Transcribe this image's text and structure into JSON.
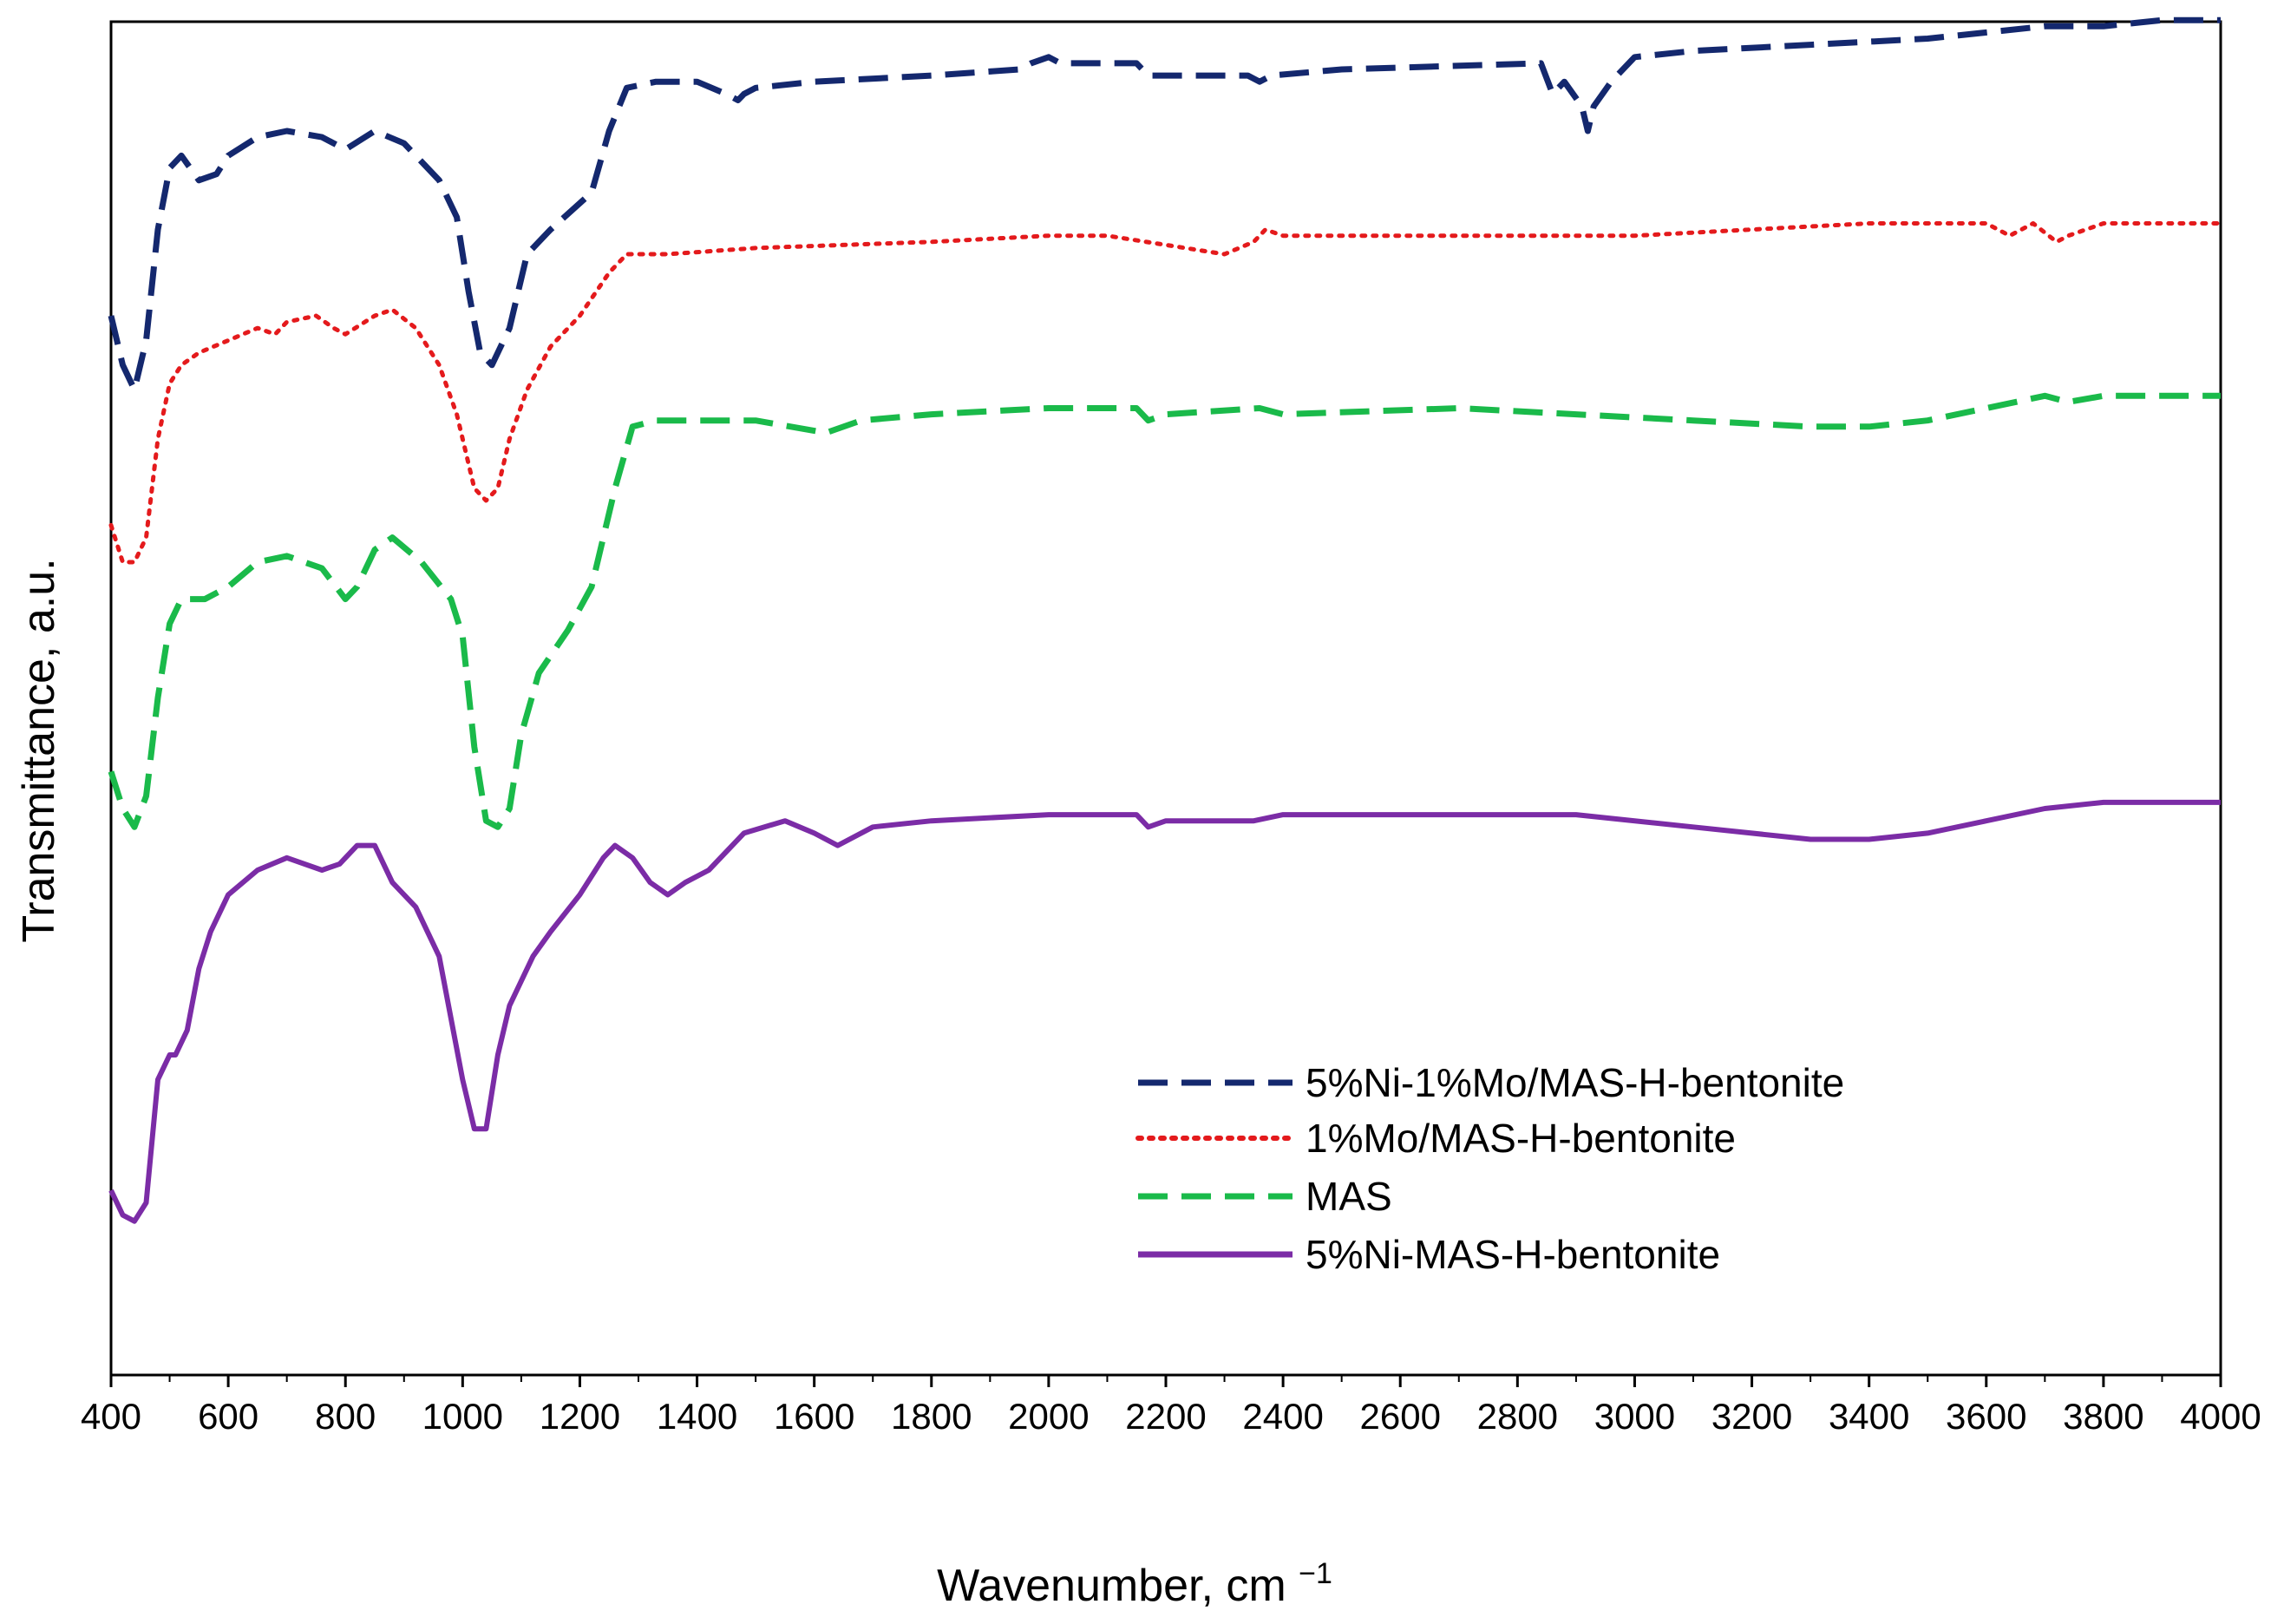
{
  "chart_data": {
    "type": "line",
    "title": "",
    "xlabel": "Wavenumber, cm ",
    "xlabel_superscript": "−1",
    "ylabel": "Transmittance, a.u.",
    "xlim": [
      400,
      4000
    ],
    "ylim": [
      0,
      100
    ],
    "x_ticks": [
      400,
      600,
      800,
      1000,
      1200,
      1400,
      1600,
      1800,
      2000,
      2200,
      2400,
      2600,
      2800,
      3000,
      3200,
      3400,
      3600,
      3800,
      4000
    ],
    "x_tick_labels": [
      "400",
      "600",
      "800",
      "1000",
      "1200",
      "1400",
      "1600",
      "1800",
      "2000",
      "2200",
      "2400",
      "2600",
      "2800",
      "3000",
      "3200",
      "3400",
      "3600",
      "3800",
      "4000"
    ],
    "y_ticks_visible": false,
    "grid": false,
    "legend_position": "lower-right",
    "series": [
      {
        "name": "5%Ni-1%Mo/MAS-H-bentonite",
        "color": "#14286e",
        "style": "dashed",
        "x": [
          400,
          420,
          440,
          460,
          480,
          500,
          520,
          550,
          580,
          600,
          650,
          700,
          760,
          800,
          850,
          900,
          960,
          990,
          1010,
          1030,
          1050,
          1080,
          1110,
          1150,
          1220,
          1250,
          1280,
          1330,
          1400,
          1450,
          1470,
          1480,
          1500,
          1600,
          1800,
          1950,
          1970,
          2000,
          2020,
          2150,
          2170,
          2300,
          2340,
          2360,
          2380,
          2500,
          2840,
          2860,
          2880,
          2910,
          2920,
          2930,
          2960,
          3000,
          3100,
          3300,
          3500,
          3600,
          3700,
          3800,
          3900,
          4000
        ],
        "values": [
          80,
          76,
          74,
          78,
          87,
          92,
          93,
          91,
          91.5,
          93,
          94.5,
          95,
          94.5,
          93.5,
          95,
          94,
          91,
          88,
          82,
          77,
          76,
          79,
          85,
          87,
          90,
          95,
          98.5,
          99,
          99,
          98,
          97.5,
          98,
          98.5,
          99,
          99.5,
          100,
          100.5,
          101,
          100.5,
          100.5,
          99.5,
          99.5,
          99.5,
          99,
          99.5,
          100,
          100.5,
          98,
          99,
          97,
          95,
          97,
          99,
          101,
          101.5,
          102,
          102.5,
          103,
          103.5,
          103.5,
          104,
          104
        ]
      },
      {
        "name": "1%Mo/MAS-H-bentonite",
        "color": "#e41a1c",
        "style": "dotted",
        "x": [
          400,
          420,
          440,
          460,
          480,
          500,
          520,
          550,
          600,
          650,
          680,
          700,
          750,
          780,
          800,
          850,
          880,
          920,
          960,
          990,
          1020,
          1040,
          1060,
          1080,
          1110,
          1150,
          1200,
          1250,
          1280,
          1350,
          1500,
          1800,
          2000,
          2100,
          2300,
          2350,
          2370,
          2400,
          2600,
          2800,
          3000,
          3200,
          3400,
          3600,
          3640,
          3680,
          3720,
          3740,
          3800,
          3900,
          4000
        ],
        "values": [
          63,
          60,
          60,
          62,
          70,
          74.5,
          76,
          77,
          78,
          79,
          78.5,
          79.5,
          80,
          79,
          78.5,
          80,
          80.5,
          79,
          76,
          72,
          66,
          65,
          66,
          70,
          74,
          77.5,
          80,
          83.5,
          85,
          85,
          85.5,
          86,
          86.5,
          86.5,
          85,
          86,
          87,
          86.5,
          86.5,
          86.5,
          86.5,
          87,
          87.5,
          87.5,
          86.5,
          87.5,
          86,
          86.5,
          87.5,
          87.5,
          87.5
        ]
      },
      {
        "name": "MAS",
        "color": "#1aba4a",
        "style": "dashed",
        "x": [
          400,
          420,
          440,
          460,
          480,
          500,
          520,
          560,
          600,
          650,
          700,
          760,
          800,
          820,
          850,
          880,
          930,
          980,
          1000,
          1020,
          1040,
          1060,
          1080,
          1100,
          1130,
          1180,
          1220,
          1260,
          1290,
          1330,
          1500,
          1560,
          1620,
          1680,
          1800,
          2000,
          2150,
          2170,
          2200,
          2360,
          2400,
          2700,
          2900,
          3100,
          3300,
          3400,
          3500,
          3600,
          3700,
          3740,
          3800,
          4000
        ],
        "values": [
          43,
          40,
          38.5,
          41,
          49,
          55,
          57,
          57,
          58,
          60,
          60.5,
          59.5,
          57,
          58,
          61,
          62,
          60,
          57,
          54,
          45,
          39,
          38.5,
          40,
          46,
          51,
          54.5,
          58,
          66,
          71,
          71.5,
          71.5,
          71,
          70.5,
          71.5,
          72,
          72.5,
          72.5,
          71.5,
          72,
          72.5,
          72,
          72.5,
          72,
          71.5,
          71,
          71,
          71.5,
          72.5,
          73.5,
          73,
          73.5,
          73.5
        ]
      },
      {
        "name": "5%Ni-MAS-H-bentonite",
        "color": "#7b2ca6",
        "style": "solid",
        "x": [
          400,
          420,
          440,
          460,
          480,
          500,
          510,
          530,
          550,
          570,
          600,
          650,
          700,
          760,
          790,
          820,
          850,
          880,
          920,
          960,
          980,
          1000,
          1020,
          1040,
          1060,
          1080,
          1120,
          1150,
          1200,
          1240,
          1260,
          1290,
          1320,
          1350,
          1380,
          1420,
          1480,
          1550,
          1600,
          1640,
          1700,
          1800,
          2000,
          2150,
          2170,
          2200,
          2350,
          2400,
          2700,
          2900,
          3100,
          3300,
          3400,
          3500,
          3600,
          3700,
          3800,
          3900,
          4000
        ],
        "values": [
          9,
          7,
          6.5,
          8,
          18,
          20,
          20,
          22,
          27,
          30,
          33,
          35,
          36,
          35,
          35.5,
          37,
          37,
          34,
          32,
          28,
          23,
          18,
          14,
          14,
          20,
          24,
          28,
          30,
          33,
          36,
          37,
          36,
          34,
          33,
          34,
          35,
          38,
          39,
          38,
          37,
          38.5,
          39,
          39.5,
          39.5,
          38.5,
          39,
          39,
          39.5,
          39.5,
          39.5,
          38.5,
          37.5,
          37.5,
          38,
          39,
          40,
          40.5,
          40.5,
          40.5
        ]
      }
    ]
  }
}
